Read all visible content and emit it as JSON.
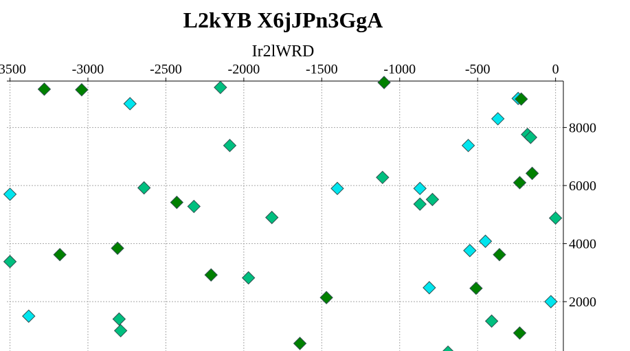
{
  "chart_data": {
    "type": "scatter",
    "title": "L2kYB X6jJPn3GgA",
    "xlabel": "Ir2lWRD",
    "ylabel": "",
    "x_axis_position": "top",
    "y_axis_position": "right",
    "xlim": [
      -3520,
      50
    ],
    "ylim": [
      300,
      9600
    ],
    "x_ticks": [
      -3500,
      -3000,
      -2500,
      -2000,
      -1500,
      -1000,
      -500,
      0
    ],
    "x_tick_labels": [
      "-3500",
      "-3000",
      "-2500",
      "-2000",
      "-1500",
      "-1000",
      "-500",
      "0"
    ],
    "y_ticks": [
      2000,
      4000,
      6000,
      8000
    ],
    "y_tick_labels": [
      "2000",
      "4000",
      "6000",
      "8000"
    ],
    "grid": true,
    "marker": "diamond",
    "series": [
      {
        "color": "#00e5ee",
        "points": [
          {
            "x": -240,
            "y": 9000
          },
          {
            "x": -2730,
            "y": 8820
          },
          {
            "x": -370,
            "y": 8300
          },
          {
            "x": -560,
            "y": 7380
          },
          {
            "x": -3500,
            "y": 5700
          },
          {
            "x": -1400,
            "y": 5900
          },
          {
            "x": -870,
            "y": 5900
          },
          {
            "x": -450,
            "y": 4080
          },
          {
            "x": -550,
            "y": 3760
          },
          {
            "x": -810,
            "y": 2480
          },
          {
            "x": -3380,
            "y": 1500
          },
          {
            "x": -30,
            "y": 2000
          }
        ]
      },
      {
        "color": "#00bf7f",
        "points": [
          {
            "x": -2150,
            "y": 9380
          },
          {
            "x": -2090,
            "y": 7380
          },
          {
            "x": -180,
            "y": 7760
          },
          {
            "x": -160,
            "y": 7660
          },
          {
            "x": -2640,
            "y": 5920
          },
          {
            "x": -1110,
            "y": 6280
          },
          {
            "x": -2320,
            "y": 5280
          },
          {
            "x": -870,
            "y": 5360
          },
          {
            "x": -790,
            "y": 5520
          },
          {
            "x": -1820,
            "y": 4900
          },
          {
            "x": 0,
            "y": 4880
          },
          {
            "x": -3500,
            "y": 3380
          },
          {
            "x": -1970,
            "y": 2820
          },
          {
            "x": -2800,
            "y": 1400
          },
          {
            "x": -2790,
            "y": 1000
          },
          {
            "x": -410,
            "y": 1330
          },
          {
            "x": -690,
            "y": 260
          }
        ]
      },
      {
        "color": "#008000",
        "points": [
          {
            "x": -3280,
            "y": 9320
          },
          {
            "x": -3040,
            "y": 9300
          },
          {
            "x": -1100,
            "y": 9550
          },
          {
            "x": -220,
            "y": 8980
          },
          {
            "x": -150,
            "y": 6420
          },
          {
            "x": -230,
            "y": 6100
          },
          {
            "x": -2430,
            "y": 5420
          },
          {
            "x": -2810,
            "y": 3840
          },
          {
            "x": -3180,
            "y": 3620
          },
          {
            "x": -360,
            "y": 3620
          },
          {
            "x": -2210,
            "y": 2920
          },
          {
            "x": -510,
            "y": 2460
          },
          {
            "x": -1470,
            "y": 2140
          },
          {
            "x": -1640,
            "y": 560
          },
          {
            "x": -230,
            "y": 920
          }
        ]
      }
    ]
  }
}
